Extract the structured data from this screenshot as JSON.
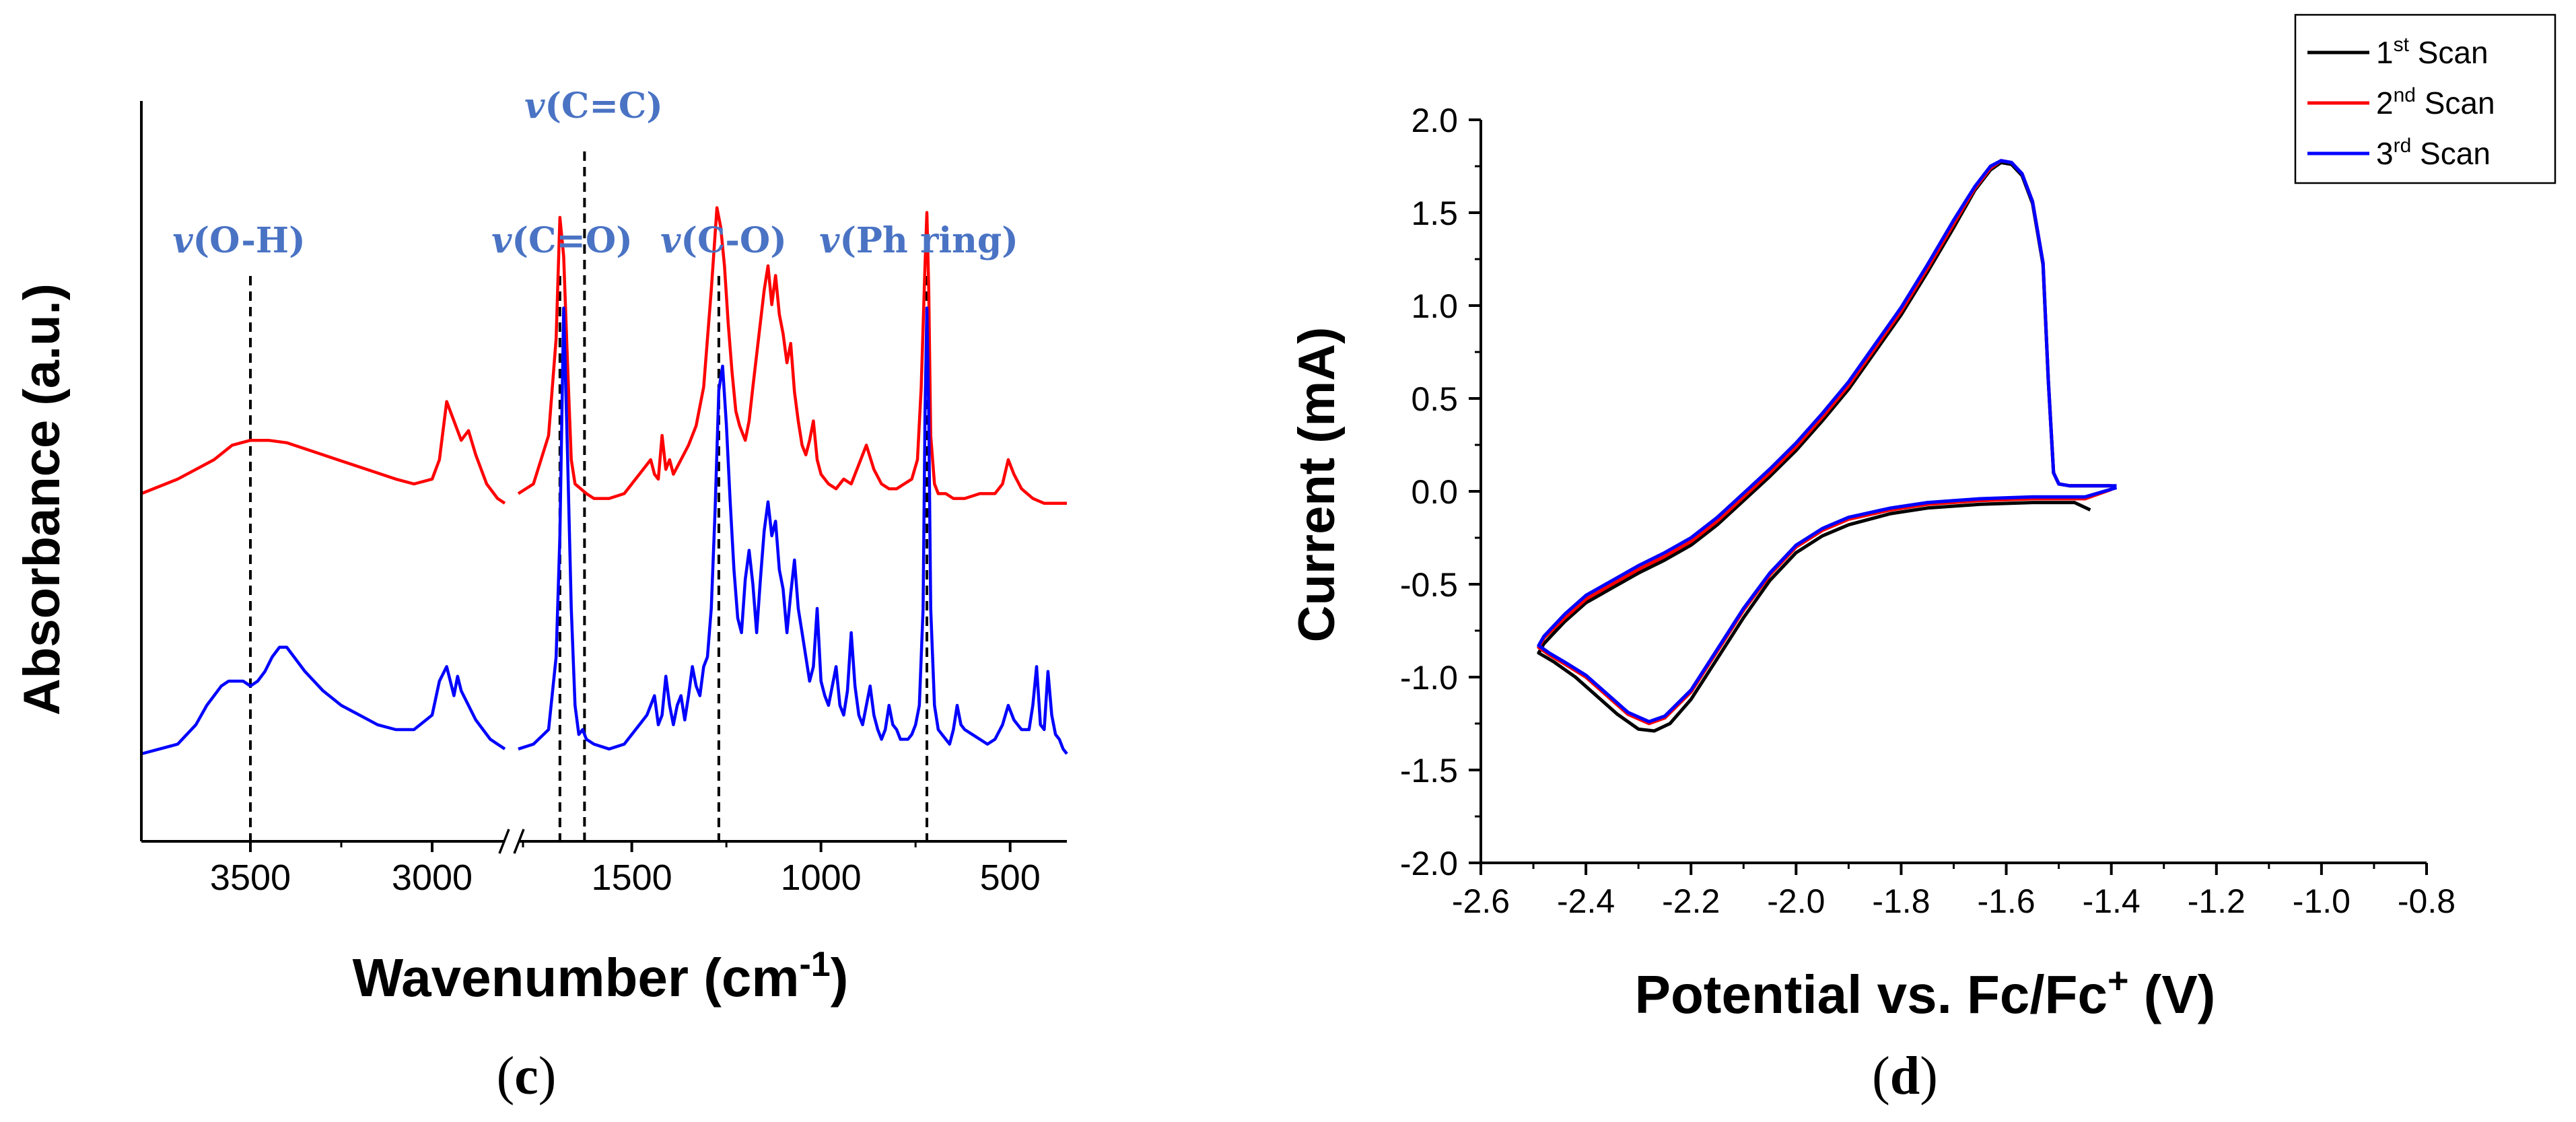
{
  "chart_data": [
    {
      "id": "panel_c",
      "type": "line",
      "panel_label": "c",
      "xlabel": "Wavenumber (cm",
      "xlabel_sup": "-1",
      "xlabel_end": ")",
      "ylabel": "Absorbance (a.u.)",
      "x_reversed": true,
      "x_break": [
        2800,
        1800
      ],
      "xlim_left": [
        3800,
        2800
      ],
      "xlim_right": [
        1800,
        350
      ],
      "xticks": [
        3500,
        3000,
        1500,
        1000,
        500
      ],
      "yticks_labeled": false,
      "grid": false,
      "annotations": [
        {
          "label": "v(O-H)",
          "x": 3500
        },
        {
          "label": "v(C=C)",
          "x": 1625
        },
        {
          "label": "v(C=O)",
          "x": 1690
        },
        {
          "label": "v(C-O)",
          "x": 1270
        },
        {
          "label": "v(Ph ring)",
          "x": 720
        }
      ],
      "series": [
        {
          "color": "#ff0000",
          "x": [
            3800,
            3700,
            3600,
            3550,
            3500,
            3450,
            3400,
            3300,
            3200,
            3100,
            3050,
            3000,
            2980,
            2960,
            2940,
            2920,
            2900,
            2880,
            2850,
            2820,
            2800,
            1800,
            1760,
            1720,
            1700,
            1690,
            1680,
            1670,
            1660,
            1650,
            1620,
            1600,
            1560,
            1520,
            1500,
            1470,
            1450,
            1440,
            1430,
            1420,
            1410,
            1400,
            1390,
            1370,
            1350,
            1330,
            1310,
            1290,
            1275,
            1265,
            1255,
            1245,
            1235,
            1225,
            1215,
            1200,
            1190,
            1180,
            1165,
            1150,
            1140,
            1130,
            1120,
            1110,
            1100,
            1090,
            1080,
            1070,
            1060,
            1050,
            1040,
            1030,
            1020,
            1010,
            1000,
            980,
            960,
            940,
            920,
            900,
            880,
            860,
            840,
            820,
            800,
            780,
            760,
            745,
            735,
            725,
            720,
            715,
            710,
            700,
            690,
            670,
            650,
            620,
            580,
            540,
            520,
            505,
            490,
            470,
            440,
            410,
            380,
            350
          ],
          "y": [
            0.03,
            0.06,
            0.1,
            0.13,
            0.14,
            0.14,
            0.135,
            0.11,
            0.085,
            0.06,
            0.05,
            0.06,
            0.1,
            0.22,
            0.18,
            0.14,
            0.16,
            0.11,
            0.05,
            0.02,
            0.01,
            0.03,
            0.05,
            0.15,
            0.35,
            0.6,
            0.52,
            0.3,
            0.1,
            0.05,
            0.03,
            0.02,
            0.02,
            0.03,
            0.05,
            0.08,
            0.1,
            0.07,
            0.06,
            0.15,
            0.08,
            0.1,
            0.07,
            0.1,
            0.13,
            0.17,
            0.25,
            0.45,
            0.62,
            0.58,
            0.5,
            0.38,
            0.28,
            0.2,
            0.17,
            0.14,
            0.18,
            0.25,
            0.35,
            0.45,
            0.5,
            0.42,
            0.48,
            0.4,
            0.36,
            0.3,
            0.34,
            0.24,
            0.18,
            0.13,
            0.11,
            0.14,
            0.18,
            0.1,
            0.07,
            0.05,
            0.04,
            0.06,
            0.05,
            0.09,
            0.13,
            0.08,
            0.05,
            0.04,
            0.04,
            0.05,
            0.06,
            0.1,
            0.25,
            0.5,
            0.61,
            0.45,
            0.15,
            0.05,
            0.03,
            0.03,
            0.02,
            0.02,
            0.03,
            0.03,
            0.05,
            0.1,
            0.07,
            0.04,
            0.02,
            0.01,
            0.01,
            0.01
          ]
        },
        {
          "color": "#0000ff",
          "x": [
            3800,
            3750,
            3700,
            3650,
            3620,
            3600,
            3580,
            3560,
            3540,
            3520,
            3500,
            3480,
            3460,
            3440,
            3420,
            3400,
            3380,
            3350,
            3300,
            3250,
            3200,
            3150,
            3100,
            3050,
            3000,
            2980,
            2960,
            2940,
            2930,
            2920,
            2900,
            2880,
            2860,
            2840,
            2820,
            2800,
            1800,
            1760,
            1720,
            1700,
            1690,
            1680,
            1670,
            1660,
            1650,
            1640,
            1630,
            1620,
            1600,
            1560,
            1520,
            1500,
            1480,
            1460,
            1450,
            1440,
            1430,
            1420,
            1410,
            1400,
            1390,
            1380,
            1370,
            1360,
            1350,
            1340,
            1330,
            1320,
            1310,
            1300,
            1290,
            1280,
            1270,
            1260,
            1250,
            1240,
            1230,
            1220,
            1210,
            1200,
            1190,
            1180,
            1170,
            1160,
            1150,
            1140,
            1130,
            1120,
            1110,
            1100,
            1090,
            1080,
            1070,
            1060,
            1050,
            1040,
            1030,
            1020,
            1010,
            1000,
            990,
            980,
            970,
            960,
            950,
            940,
            930,
            920,
            910,
            900,
            890,
            880,
            870,
            860,
            850,
            840,
            830,
            820,
            810,
            800,
            790,
            780,
            770,
            760,
            750,
            740,
            730,
            725,
            720,
            715,
            710,
            700,
            690,
            680,
            670,
            660,
            650,
            640,
            630,
            620,
            600,
            580,
            560,
            540,
            520,
            505,
            490,
            470,
            450,
            440,
            430,
            420,
            410,
            400,
            390,
            380,
            370,
            360,
            350
          ],
          "y": [
            0.0,
            0.01,
            0.02,
            0.06,
            0.1,
            0.12,
            0.14,
            0.15,
            0.15,
            0.15,
            0.14,
            0.15,
            0.17,
            0.2,
            0.22,
            0.22,
            0.2,
            0.17,
            0.13,
            0.1,
            0.08,
            0.06,
            0.05,
            0.05,
            0.08,
            0.15,
            0.18,
            0.12,
            0.16,
            0.13,
            0.1,
            0.07,
            0.05,
            0.03,
            0.02,
            0.01,
            0.01,
            0.02,
            0.05,
            0.2,
            0.45,
            0.92,
            0.62,
            0.3,
            0.1,
            0.04,
            0.05,
            0.03,
            0.02,
            0.01,
            0.02,
            0.04,
            0.06,
            0.08,
            0.1,
            0.12,
            0.06,
            0.08,
            0.16,
            0.1,
            0.06,
            0.1,
            0.12,
            0.07,
            0.12,
            0.18,
            0.14,
            0.12,
            0.18,
            0.2,
            0.3,
            0.5,
            0.75,
            0.8,
            0.68,
            0.52,
            0.38,
            0.28,
            0.25,
            0.36,
            0.42,
            0.35,
            0.25,
            0.36,
            0.46,
            0.52,
            0.45,
            0.48,
            0.38,
            0.34,
            0.25,
            0.33,
            0.4,
            0.3,
            0.25,
            0.2,
            0.15,
            0.18,
            0.3,
            0.15,
            0.12,
            0.1,
            0.14,
            0.18,
            0.1,
            0.08,
            0.13,
            0.25,
            0.14,
            0.08,
            0.06,
            0.1,
            0.14,
            0.08,
            0.05,
            0.03,
            0.05,
            0.1,
            0.06,
            0.05,
            0.03,
            0.03,
            0.03,
            0.04,
            0.06,
            0.1,
            0.3,
            0.7,
            0.92,
            0.7,
            0.3,
            0.1,
            0.05,
            0.04,
            0.03,
            0.02,
            0.05,
            0.1,
            0.06,
            0.05,
            0.04,
            0.03,
            0.02,
            0.03,
            0.06,
            0.1,
            0.07,
            0.05,
            0.05,
            0.1,
            0.18,
            0.06,
            0.05,
            0.17,
            0.08,
            0.04,
            0.03,
            0.01,
            0.0
          ]
        }
      ]
    },
    {
      "id": "panel_d",
      "type": "line",
      "panel_label": "d",
      "xlabel": "Potential vs. Fc/Fc",
      "xlabel_sup": "+",
      "xlabel_end": " (V)",
      "ylabel": "Current (mA)",
      "xlim": [
        -2.6,
        -0.8
      ],
      "ylim": [
        -2.0,
        2.0
      ],
      "xticks": [
        -2.6,
        -2.4,
        -2.2,
        -2.0,
        -1.8,
        -1.6,
        -1.4,
        -1.2,
        -1.0,
        -0.8
      ],
      "yticks": [
        -2.0,
        -1.5,
        -1.0,
        -0.5,
        0.0,
        0.5,
        1.0,
        1.5,
        2.0
      ],
      "grid": false,
      "legend_position": "top-right",
      "series": [
        {
          "name": "1",
          "name_sup": "st",
          "name_end": " Scan",
          "color": "#000000",
          "x": [
            -1.44,
            -1.47,
            -1.55,
            -1.65,
            -1.75,
            -1.82,
            -1.9,
            -1.95,
            -2.0,
            -2.05,
            -2.1,
            -2.15,
            -2.2,
            -2.24,
            -2.27,
            -2.3,
            -2.34,
            -2.38,
            -2.42,
            -2.46,
            -2.49,
            -2.48,
            -2.44,
            -2.4,
            -2.35,
            -2.3,
            -2.25,
            -2.2,
            -2.15,
            -2.1,
            -2.05,
            -2.0,
            -1.95,
            -1.9,
            -1.85,
            -1.8,
            -1.75,
            -1.7,
            -1.66,
            -1.63,
            -1.61,
            -1.59,
            -1.57,
            -1.55,
            -1.53,
            -1.52,
            -1.51,
            -1.5,
            -1.48,
            -1.45,
            -1.42,
            -1.4
          ],
          "y": [
            -0.1,
            -0.06,
            -0.06,
            -0.07,
            -0.09,
            -0.12,
            -0.18,
            -0.24,
            -0.33,
            -0.48,
            -0.68,
            -0.9,
            -1.12,
            -1.25,
            -1.29,
            -1.28,
            -1.2,
            -1.1,
            -1.0,
            -0.92,
            -0.87,
            -0.82,
            -0.7,
            -0.6,
            -0.52,
            -0.44,
            -0.37,
            -0.29,
            -0.18,
            -0.05,
            0.08,
            0.22,
            0.38,
            0.55,
            0.75,
            0.95,
            1.18,
            1.42,
            1.62,
            1.73,
            1.77,
            1.76,
            1.7,
            1.55,
            1.22,
            0.6,
            0.1,
            0.04,
            0.03,
            0.03,
            0.03,
            0.03
          ]
        },
        {
          "name": "2",
          "name_sup": "nd",
          "name_end": " Scan",
          "color": "#ff0000",
          "x": [
            -1.4,
            -1.45,
            -1.55,
            -1.65,
            -1.75,
            -1.82,
            -1.9,
            -1.95,
            -2.0,
            -2.05,
            -2.1,
            -2.15,
            -2.2,
            -2.25,
            -2.28,
            -2.32,
            -2.36,
            -2.4,
            -2.44,
            -2.47,
            -2.49,
            -2.48,
            -2.44,
            -2.4,
            -2.35,
            -2.3,
            -2.25,
            -2.2,
            -2.15,
            -2.1,
            -2.05,
            -2.0,
            -1.95,
            -1.9,
            -1.85,
            -1.8,
            -1.75,
            -1.7,
            -1.66,
            -1.63,
            -1.61,
            -1.59,
            -1.57,
            -1.55,
            -1.53,
            -1.52,
            -1.51,
            -1.5,
            -1.48,
            -1.45,
            -1.42,
            -1.4
          ],
          "y": [
            0.01,
            -0.04,
            -0.04,
            -0.05,
            -0.07,
            -0.1,
            -0.15,
            -0.21,
            -0.3,
            -0.45,
            -0.64,
            -0.86,
            -1.08,
            -1.22,
            -1.25,
            -1.2,
            -1.1,
            -1.0,
            -0.93,
            -0.88,
            -0.84,
            -0.79,
            -0.68,
            -0.58,
            -0.5,
            -0.42,
            -0.35,
            -0.27,
            -0.16,
            -0.03,
            0.1,
            0.24,
            0.4,
            0.57,
            0.77,
            0.97,
            1.2,
            1.44,
            1.63,
            1.74,
            1.78,
            1.77,
            1.71,
            1.56,
            1.23,
            0.6,
            0.1,
            0.04,
            0.03,
            0.03,
            0.03,
            0.03
          ]
        },
        {
          "name": "3",
          "name_sup": "rd",
          "name_end": " Scan",
          "color": "#0000ff",
          "x": [
            -1.39,
            -1.45,
            -1.55,
            -1.65,
            -1.75,
            -1.82,
            -1.9,
            -1.95,
            -2.0,
            -2.05,
            -2.1,
            -2.15,
            -2.2,
            -2.25,
            -2.28,
            -2.32,
            -2.36,
            -2.4,
            -2.44,
            -2.47,
            -2.49,
            -2.48,
            -2.44,
            -2.4,
            -2.35,
            -2.3,
            -2.25,
            -2.2,
            -2.15,
            -2.1,
            -2.05,
            -2.0,
            -1.95,
            -1.9,
            -1.85,
            -1.8,
            -1.75,
            -1.7,
            -1.66,
            -1.63,
            -1.61,
            -1.59,
            -1.57,
            -1.55,
            -1.53,
            -1.52,
            -1.51,
            -1.5,
            -1.48,
            -1.45,
            -1.42,
            -1.39
          ],
          "y": [
            0.02,
            -0.03,
            -0.03,
            -0.04,
            -0.06,
            -0.09,
            -0.14,
            -0.2,
            -0.29,
            -0.44,
            -0.63,
            -0.85,
            -1.07,
            -1.21,
            -1.24,
            -1.19,
            -1.09,
            -0.99,
            -0.92,
            -0.87,
            -0.83,
            -0.78,
            -0.66,
            -0.56,
            -0.48,
            -0.4,
            -0.33,
            -0.25,
            -0.14,
            -0.01,
            0.12,
            0.26,
            0.42,
            0.59,
            0.79,
            0.99,
            1.22,
            1.46,
            1.64,
            1.75,
            1.78,
            1.77,
            1.71,
            1.56,
            1.23,
            0.6,
            0.1,
            0.04,
            0.03,
            0.03,
            0.03,
            0.03
          ]
        }
      ]
    }
  ]
}
